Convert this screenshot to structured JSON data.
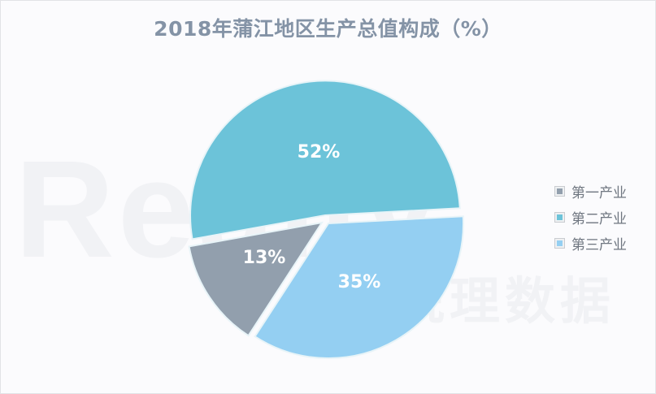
{
  "chart_data": {
    "type": "pie",
    "title": "2018年蒲江地区生产总值构成（%）",
    "categories": [
      "第一产业",
      "第二产业",
      "第三产业"
    ],
    "values": [
      13,
      52,
      35
    ],
    "labels": [
      "13%",
      "52%",
      "35%"
    ],
    "colors": [
      "#929fad",
      "#6cc3d9",
      "#94cff2"
    ],
    "legend_position": "right",
    "exploded": true
  },
  "title": "2018年蒲江地区生产总值构成（%）",
  "legend": {
    "items": [
      {
        "label": "第一产业",
        "color": "#929fad"
      },
      {
        "label": "第二产业",
        "color": "#6cc3d9"
      },
      {
        "label": "第三产业",
        "color": "#94cff2"
      }
    ]
  },
  "slices": {
    "primary": {
      "label": "13%"
    },
    "secondary": {
      "label": "52%"
    },
    "tertiary": {
      "label": "35%"
    }
  },
  "watermark": {
    "text": "Really",
    "cn": "锐理数据"
  }
}
